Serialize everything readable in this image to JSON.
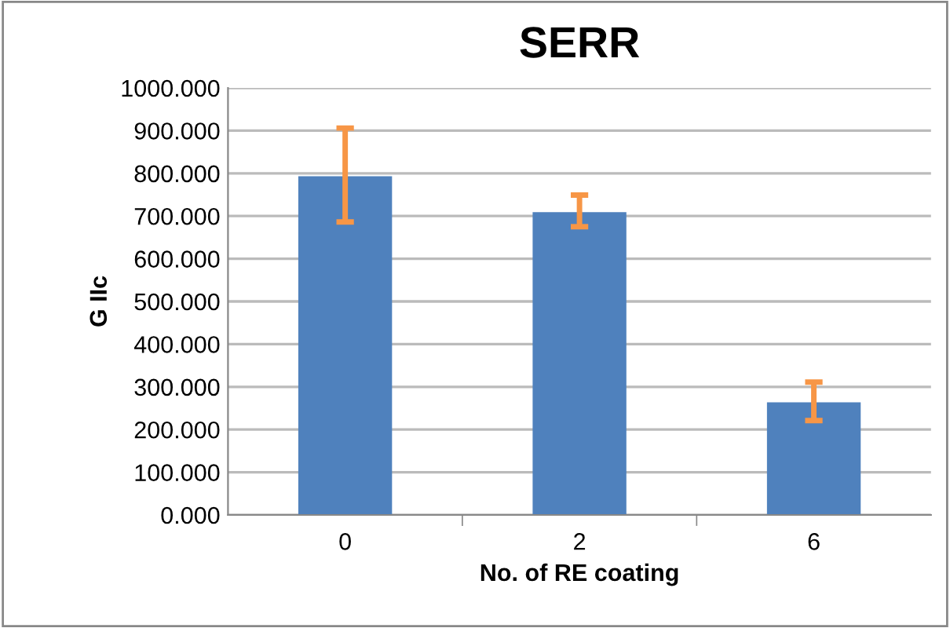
{
  "chart_data": {
    "type": "bar",
    "title": "SERR",
    "xlabel": "No. of RE coating",
    "ylabel": "G IIc",
    "categories": [
      "0",
      "2",
      "6"
    ],
    "values": [
      793,
      709,
      264
    ],
    "errors": [
      [
        686,
        906
      ],
      [
        675,
        749
      ],
      [
        221,
        311
      ]
    ],
    "color": "#4f81bd",
    "ylim": [
      0,
      1000
    ],
    "yticks": [
      {
        "value": 0,
        "label": "0.000"
      },
      {
        "value": 100,
        "label": "100.000"
      },
      {
        "value": 200,
        "label": "200.000"
      },
      {
        "value": 300,
        "label": "300.000"
      },
      {
        "value": 400,
        "label": "400.000"
      },
      {
        "value": 500,
        "label": "500.000"
      },
      {
        "value": 600,
        "label": "600.000"
      },
      {
        "value": 700,
        "label": "700.000"
      },
      {
        "value": 800,
        "label": "800.000"
      },
      {
        "value": 900,
        "label": "900.000"
      },
      {
        "value": 1000,
        "label": "1000.000"
      }
    ],
    "grid": "y"
  }
}
